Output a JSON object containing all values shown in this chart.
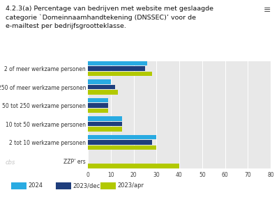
{
  "title_line1": "4.2.3(a) Percentage van bedrijven met website met geslaagde",
  "title_line2": "categorie `Domeinnaamhandtekening (DNSSEC)’ voor de",
  "title_line3": "e-mailtest per bedrijfsgrootteklasse.",
  "categories": [
    "2 of meer werkzame personen",
    "250 of meer werkzame personen",
    "50 tot 250 werkzame personen",
    "10 tot 50 werkzame personen",
    "2 tot 10 werkzame personen",
    "ZZP’ ers"
  ],
  "series_2024": [
    26,
    10,
    9,
    15,
    30,
    null
  ],
  "series_2023dec": [
    25,
    12,
    9,
    15,
    28,
    null
  ],
  "series_2023apr": [
    28,
    13,
    9,
    15,
    30,
    40
  ],
  "color_2024": "#29abe2",
  "color_2023dec": "#1f3e7c",
  "color_2023apr": "#b2c900",
  "xlim": [
    0,
    80
  ],
  "xticks": [
    0,
    10,
    20,
    30,
    40,
    50,
    60,
    70,
    80
  ],
  "bar_height": 0.25,
  "background_color": "#e8e8e8",
  "chart_background": "#e8e8e8",
  "title_fontsize": 6.8,
  "tick_fontsize": 5.5,
  "legend_fontsize": 6.0,
  "label_fontsize": 5.5
}
